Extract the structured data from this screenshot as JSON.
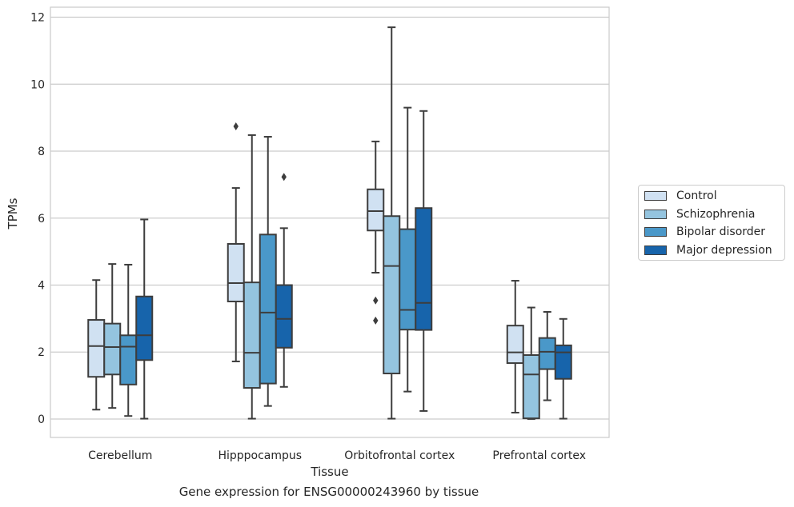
{
  "caption": "Gene expression for ENSG00000243960 by tissue",
  "chart_data": {
    "type": "box",
    "title": "",
    "xlabel": "Tissue",
    "ylabel": "TPMs",
    "ylim": [
      -0.55,
      12.3
    ],
    "yticks": [
      0,
      2,
      4,
      6,
      8,
      10,
      12
    ],
    "grid": "horizontal",
    "legend_position": "right",
    "categories": [
      "Cerebellum",
      "Hipppocampus",
      "Orbitofrontal cortex",
      "Prefrontal cortex"
    ],
    "series": [
      {
        "name": "Control",
        "color": "#d0e1f2",
        "boxes": [
          {
            "whisker_low": 0.28,
            "q1": 1.26,
            "median": 2.18,
            "q3": 2.96,
            "whisker_high": 4.15,
            "outliers": []
          },
          {
            "whisker_low": 1.72,
            "q1": 3.51,
            "median": 4.06,
            "q3": 5.23,
            "whisker_high": 6.9,
            "outliers": [
              8.74
            ]
          },
          {
            "whisker_low": 4.37,
            "q1": 5.63,
            "median": 6.21,
            "q3": 6.86,
            "whisker_high": 8.29,
            "outliers": [
              3.54,
              2.94
            ]
          },
          {
            "whisker_low": 0.19,
            "q1": 1.67,
            "median": 1.99,
            "q3": 2.79,
            "whisker_high": 4.13,
            "outliers": []
          }
        ]
      },
      {
        "name": "Schizophrenia",
        "color": "#94c4df",
        "boxes": [
          {
            "whisker_low": 0.33,
            "q1": 1.33,
            "median": 2.15,
            "q3": 2.85,
            "whisker_high": 4.63,
            "outliers": []
          },
          {
            "whisker_low": 0.01,
            "q1": 0.93,
            "median": 1.98,
            "q3": 4.08,
            "whisker_high": 8.48,
            "outliers": []
          },
          {
            "whisker_low": 0.01,
            "q1": 1.36,
            "median": 4.57,
            "q3": 6.06,
            "whisker_high": 11.7,
            "outliers": []
          },
          {
            "whisker_low": 0.0,
            "q1": 0.02,
            "median": 1.33,
            "q3": 1.91,
            "whisker_high": 3.33,
            "outliers": []
          }
        ]
      },
      {
        "name": "Bipolar disorder",
        "color": "#4a98c9",
        "boxes": [
          {
            "whisker_low": 0.09,
            "q1": 1.03,
            "median": 2.16,
            "q3": 2.5,
            "whisker_high": 4.61,
            "outliers": []
          },
          {
            "whisker_low": 0.39,
            "q1": 1.06,
            "median": 3.18,
            "q3": 5.51,
            "whisker_high": 8.43,
            "outliers": []
          },
          {
            "whisker_low": 0.82,
            "q1": 2.67,
            "median": 3.26,
            "q3": 5.67,
            "whisker_high": 9.3,
            "outliers": []
          },
          {
            "whisker_low": 0.56,
            "q1": 1.49,
            "median": 2.01,
            "q3": 2.42,
            "whisker_high": 3.2,
            "outliers": []
          }
        ]
      },
      {
        "name": "Major depression",
        "color": "#1764ab",
        "boxes": [
          {
            "whisker_low": 0.01,
            "q1": 1.76,
            "median": 2.5,
            "q3": 3.66,
            "whisker_high": 5.96,
            "outliers": []
          },
          {
            "whisker_low": 0.96,
            "q1": 2.13,
            "median": 2.99,
            "q3": 4.0,
            "whisker_high": 5.7,
            "outliers": [
              7.23
            ]
          },
          {
            "whisker_low": 0.24,
            "q1": 2.66,
            "median": 3.47,
            "q3": 6.3,
            "whisker_high": 9.2,
            "outliers": []
          },
          {
            "whisker_low": 0.01,
            "q1": 1.2,
            "median": 1.99,
            "q3": 2.2,
            "whisker_high": 2.99,
            "outliers": []
          }
        ]
      }
    ]
  }
}
